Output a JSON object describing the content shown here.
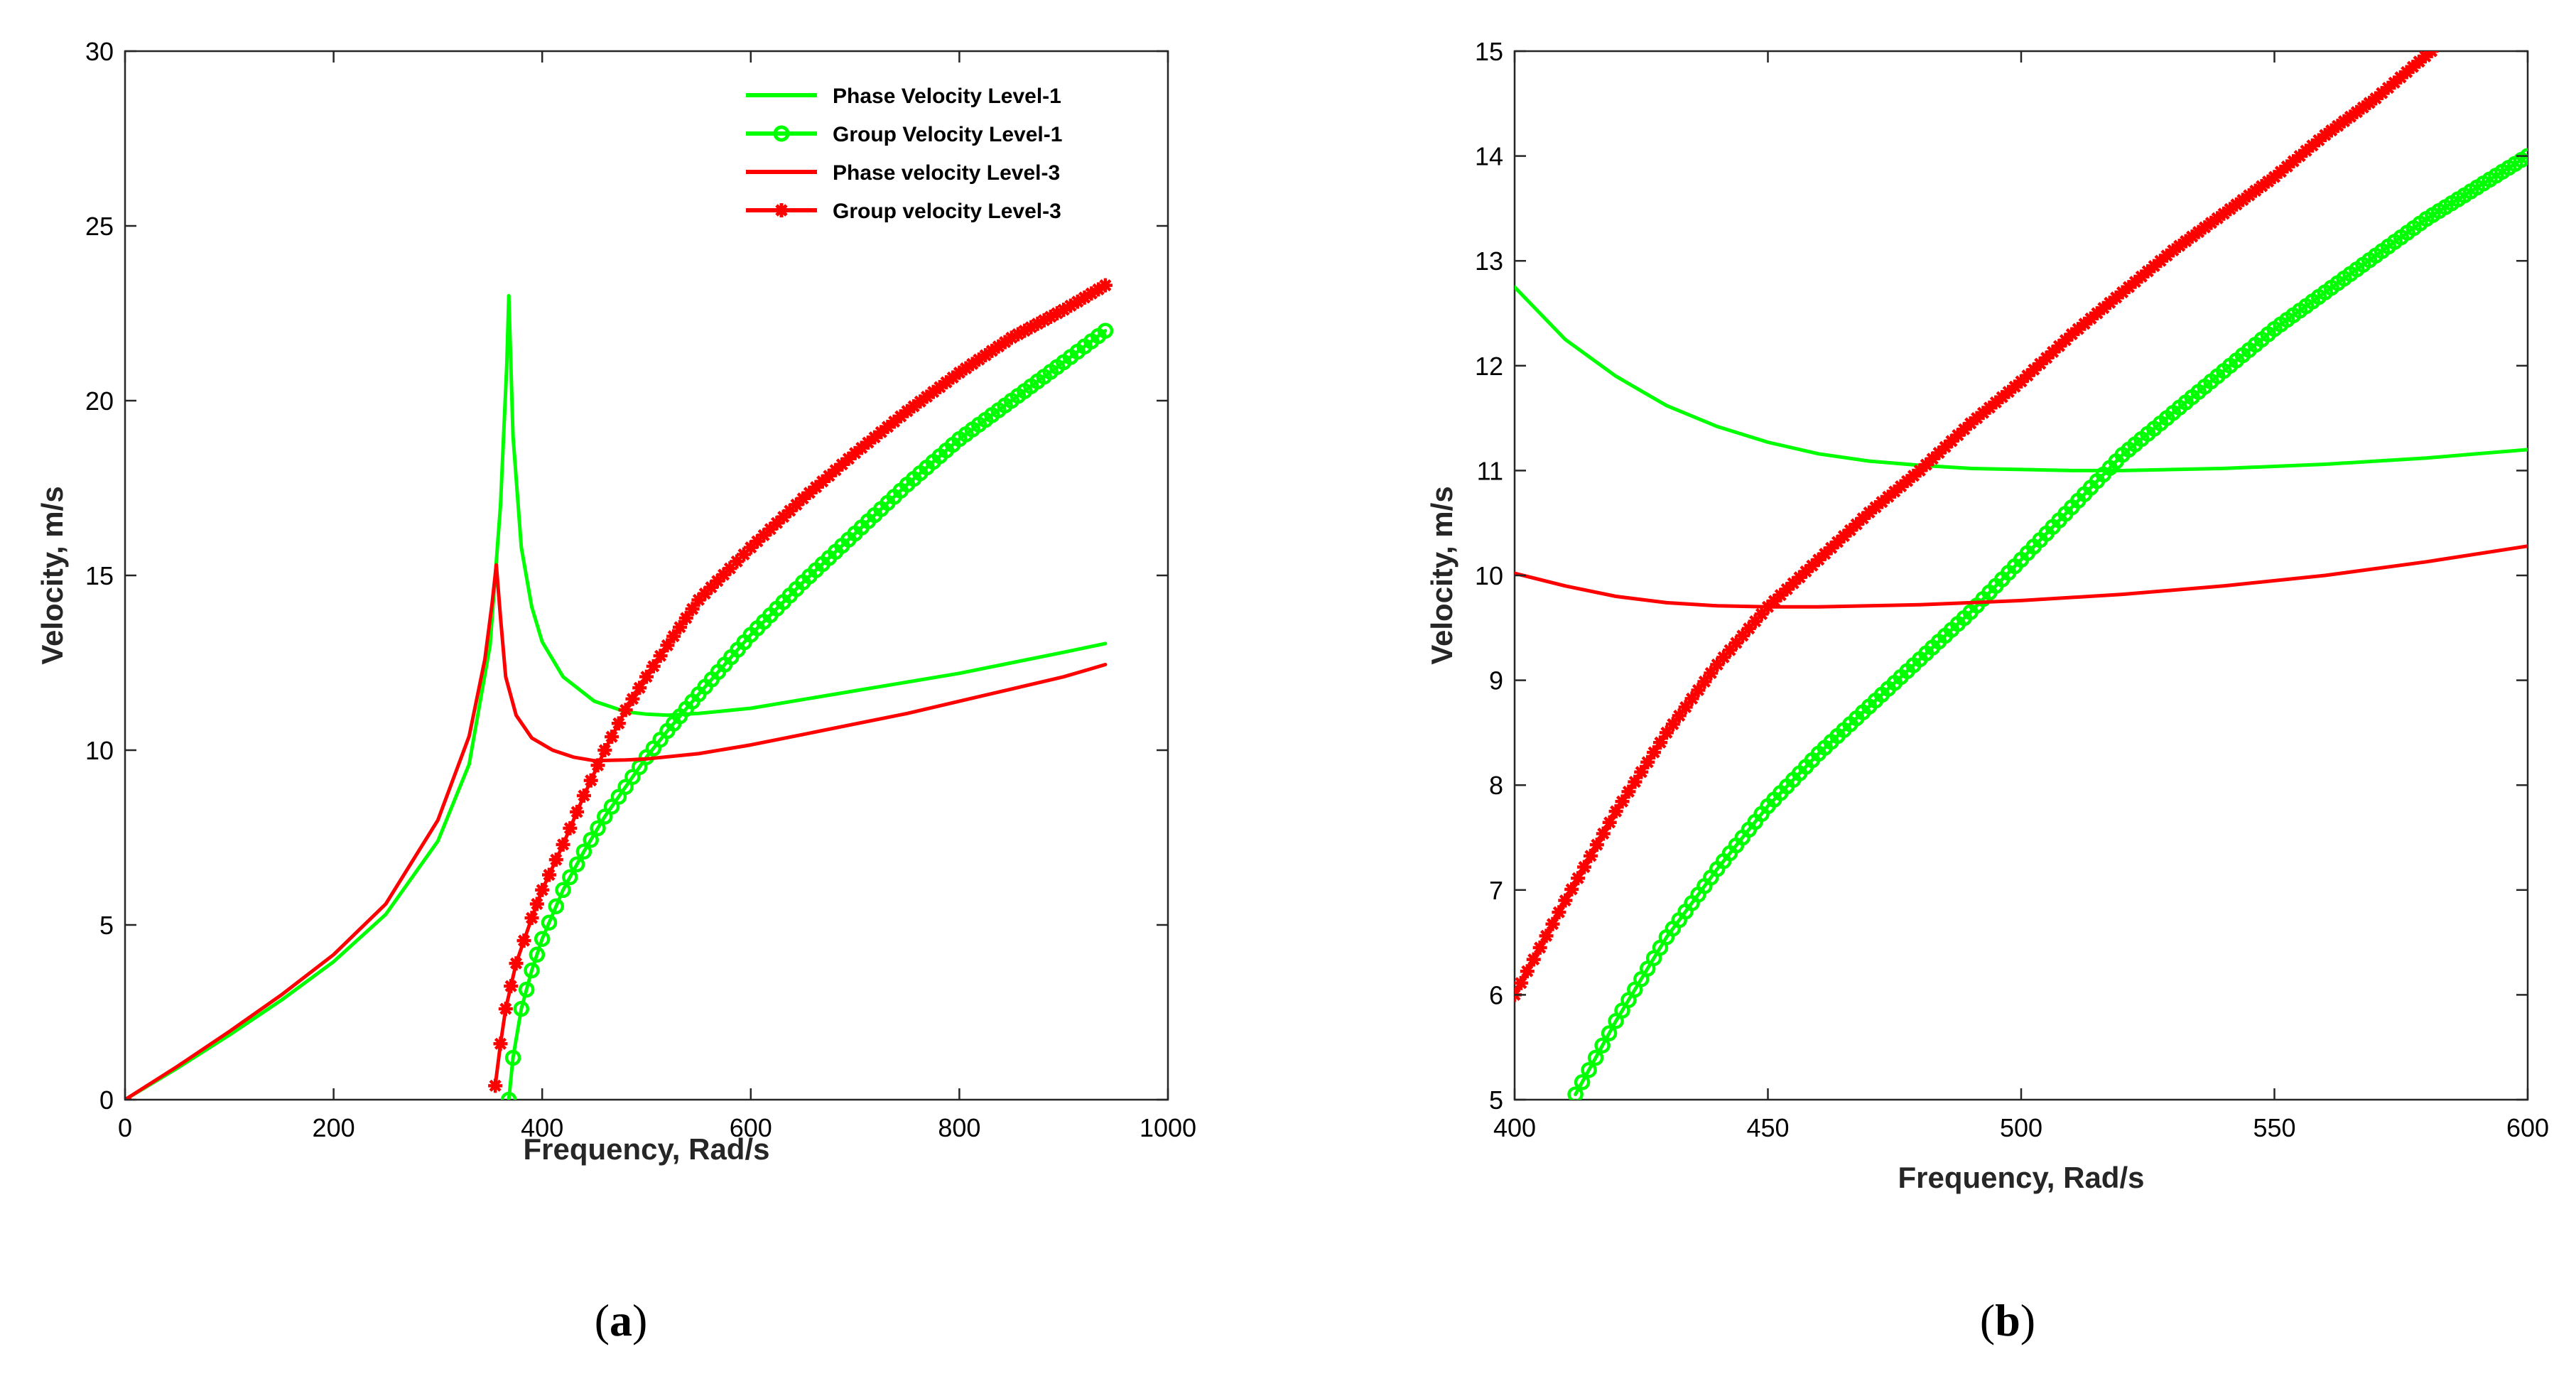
{
  "chart_data": [
    {
      "type": "line",
      "panel_caption": "a",
      "xlabel": "Frequency, Rad/s",
      "ylabel": "Velocity, m/s",
      "xlim": [
        0,
        1000
      ],
      "ylim": [
        0,
        30
      ],
      "xticks": [
        "0",
        "200",
        "400",
        "600",
        "800",
        "1000"
      ],
      "yticks": [
        "0",
        "5",
        "10",
        "15",
        "20",
        "25",
        "30"
      ],
      "legend_position": "top-right",
      "legend": [
        "Phase Velocity Level-1",
        "Group Velocity Level-1",
        "Phase velocity Level-3",
        "Group velocity Level-3"
      ],
      "series": [
        {
          "name": "Phase Velocity Level-1",
          "color": "#00ff00",
          "marker": "none",
          "segments": [
            {
              "x": [
                0,
                50,
                100,
                150,
                200,
                250,
                300,
                330,
                350,
                360,
                366,
                368
              ],
              "y": [
                0,
                0.9,
                1.85,
                2.85,
                3.95,
                5.3,
                7.4,
                9.6,
                13.0,
                17.0,
                21.0,
                23.0
              ]
            },
            {
              "x": [
                368,
                372,
                380,
                390,
                400,
                420,
                450,
                480,
                500,
                520,
                550,
                600,
                650,
                700,
                750,
                800,
                850,
                900,
                940
              ],
              "y": [
                23.0,
                19.0,
                15.8,
                14.1,
                13.1,
                12.1,
                11.4,
                11.1,
                11.03,
                11.0,
                11.05,
                11.2,
                11.45,
                11.7,
                11.95,
                12.2,
                12.5,
                12.8,
                13.05
              ]
            }
          ]
        },
        {
          "name": "Group Velocity Level-1",
          "color": "#00ff00",
          "marker": "circle",
          "segments": [
            {
              "x": [
                0,
                5
              ],
              "y": [
                0,
                0
              ]
            },
            {
              "x": [
                368,
                372,
                380,
                390,
                400,
                420,
                440,
                460,
                480,
                500,
                520,
                550,
                600,
                650,
                700,
                750,
                800,
                850,
                900,
                940
              ],
              "y": [
                0,
                1.2,
                2.6,
                3.7,
                4.6,
                6.0,
                7.1,
                8.1,
                8.95,
                9.8,
                10.55,
                11.6,
                13.3,
                14.8,
                16.2,
                17.6,
                18.9,
                20.0,
                21.1,
                22.0
              ]
            }
          ]
        },
        {
          "name": "Phase velocity Level-3",
          "color": "#ff0000",
          "marker": "none",
          "segments": [
            {
              "x": [
                0,
                50,
                100,
                150,
                200,
                250,
                300,
                330,
                345,
                352,
                356
              ],
              "y": [
                0,
                0.95,
                1.95,
                3.0,
                4.15,
                5.6,
                8.0,
                10.4,
                12.6,
                14.2,
                15.3
              ]
            },
            {
              "x": [
                356,
                360,
                365,
                375,
                390,
                410,
                430,
                450,
                480,
                500,
                550,
                600,
                650,
                700,
                750,
                800,
                850,
                900,
                940
              ],
              "y": [
                15.3,
                13.8,
                12.1,
                11.0,
                10.35,
                10.0,
                9.8,
                9.7,
                9.72,
                9.75,
                9.9,
                10.15,
                10.45,
                10.75,
                11.05,
                11.4,
                11.75,
                12.1,
                12.45
              ]
            }
          ]
        },
        {
          "name": "Group velocity Level-3",
          "color": "#ff0000",
          "marker": "asterisk",
          "segments": [
            {
              "x": [
                0,
                5
              ],
              "y": [
                0,
                0
              ]
            },
            {
              "x": [
                355,
                360,
                365,
                375,
                390,
                400,
                420,
                440,
                460,
                480,
                500,
                520,
                550,
                580,
                600,
                650,
                700,
                750,
                800,
                850,
                900,
                940
              ],
              "y": [
                0.4,
                1.6,
                2.6,
                3.9,
                5.2,
                6.0,
                7.3,
                8.7,
                10.0,
                11.15,
                12.1,
                13.0,
                14.3,
                15.2,
                15.8,
                17.2,
                18.5,
                19.7,
                20.8,
                21.8,
                22.6,
                23.3
              ]
            }
          ]
        }
      ]
    },
    {
      "type": "line",
      "panel_caption": "b",
      "xlabel": "Frequency, Rad/s",
      "ylabel": "Velocity, m/s",
      "xlim": [
        400,
        600
      ],
      "ylim": [
        5,
        15
      ],
      "xticks": [
        "400",
        "450",
        "500",
        "550",
        "600"
      ],
      "yticks": [
        "5",
        "6",
        "7",
        "8",
        "9",
        "10",
        "11",
        "12",
        "13",
        "14",
        "15"
      ],
      "series": [
        {
          "name": "Phase Velocity Level-1",
          "color": "#00ff00",
          "marker": "none",
          "segments": [
            {
              "x": [
                400,
                410,
                420,
                430,
                440,
                450,
                460,
                470,
                480,
                490,
                500,
                510,
                520,
                530,
                540,
                550,
                560,
                570,
                580,
                590,
                600
              ],
              "y": [
                12.75,
                12.25,
                11.9,
                11.62,
                11.42,
                11.27,
                11.16,
                11.09,
                11.05,
                11.02,
                11.01,
                11.0,
                11.0,
                11.01,
                11.02,
                11.04,
                11.06,
                11.09,
                11.12,
                11.16,
                11.2
              ]
            }
          ]
        },
        {
          "name": "Group Velocity Level-1",
          "color": "#00ff00",
          "marker": "circle",
          "segments": [
            {
              "x": [
                412,
                420,
                430,
                440,
                450,
                460,
                470,
                480,
                490,
                500,
                510,
                520,
                530,
                540,
                550,
                560,
                570,
                580,
                590,
                600
              ],
              "y": [
                5.05,
                5.75,
                6.55,
                7.2,
                7.8,
                8.3,
                8.75,
                9.2,
                9.65,
                10.15,
                10.65,
                11.15,
                11.55,
                11.95,
                12.35,
                12.7,
                13.05,
                13.4,
                13.7,
                14.0
              ]
            }
          ]
        },
        {
          "name": "Phase velocity Level-3",
          "color": "#ff0000",
          "marker": "none",
          "segments": [
            {
              "x": [
                400,
                410,
                420,
                430,
                440,
                450,
                460,
                470,
                480,
                490,
                500,
                520,
                540,
                560,
                580,
                600
              ],
              "y": [
                10.02,
                9.9,
                9.8,
                9.74,
                9.71,
                9.7,
                9.7,
                9.71,
                9.72,
                9.74,
                9.76,
                9.82,
                9.9,
                10.0,
                10.13,
                10.28
              ]
            }
          ]
        },
        {
          "name": "Group velocity Level-3",
          "color": "#ff0000",
          "marker": "asterisk",
          "segments": [
            {
              "x": [
                400,
                410,
                420,
                430,
                440,
                450,
                460,
                470,
                480,
                490,
                500,
                510,
                520,
                530,
                540,
                550,
                560,
                570,
                581
              ],
              "y": [
                6.0,
                6.9,
                7.75,
                8.5,
                9.15,
                9.7,
                10.15,
                10.6,
                11.0,
                11.45,
                11.85,
                12.3,
                12.7,
                13.1,
                13.45,
                13.8,
                14.2,
                14.55,
                15.0
              ]
            }
          ]
        }
      ]
    }
  ]
}
